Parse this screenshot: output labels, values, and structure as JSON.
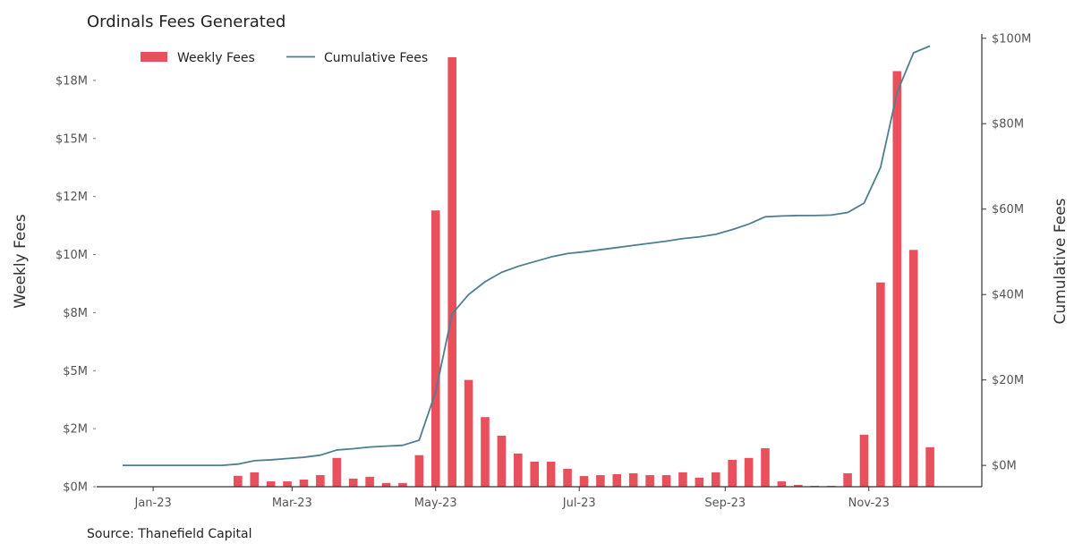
{
  "chart_data": {
    "type": "bar+line",
    "title": "Ordinals Fees Generated",
    "source": "Source: Thanefield Capital",
    "ylabel_left": "Weekly Fees",
    "ylabel_right": "Cumulative Fees",
    "colors": {
      "bar": "#e8505b",
      "line": "#4e7f8c"
    },
    "legend": {
      "placement": "top-left",
      "entries": [
        "Weekly Fees",
        "Cumulative Fees"
      ]
    },
    "grid": false,
    "left_axis": {
      "ylim": [
        0,
        19.5
      ],
      "ticks": [
        {
          "value": 0,
          "label": "$0M"
        },
        {
          "value": 2.5,
          "label": "$2M"
        },
        {
          "value": 5,
          "label": "$5M"
        },
        {
          "value": 7.5,
          "label": "$8M"
        },
        {
          "value": 10,
          "label": "$10M"
        },
        {
          "value": 12.5,
          "label": "$12M"
        },
        {
          "value": 15,
          "label": "$15M"
        },
        {
          "value": 17.5,
          "label": "$18M"
        }
      ]
    },
    "right_axis": {
      "ylim": [
        -5,
        101
      ],
      "ticks": [
        {
          "value": 0,
          "label": "$0M"
        },
        {
          "value": 20,
          "label": "$20M"
        },
        {
          "value": 40,
          "label": "$40M"
        },
        {
          "value": 60,
          "label": "$60M"
        },
        {
          "value": 80,
          "label": "$80M"
        },
        {
          "value": 100,
          "label": "$100M"
        }
      ]
    },
    "x_axis": {
      "xlim": [
        "2022-12-08",
        "2023-12-19"
      ],
      "ticks": [
        {
          "date": "2023-01-01",
          "label": "Jan-23"
        },
        {
          "date": "2023-03-01",
          "label": "Mar-23"
        },
        {
          "date": "2023-05-01",
          "label": "May-23"
        },
        {
          "date": "2023-07-01",
          "label": "Jul-23"
        },
        {
          "date": "2023-09-01",
          "label": "Sep-23"
        },
        {
          "date": "2023-11-01",
          "label": "Nov-23"
        }
      ]
    },
    "series": [
      {
        "name": "Weekly Fees",
        "kind": "bar",
        "axis": "left",
        "unit": "$M",
        "points": [
          {
            "date": "2022-12-19",
            "value": 0
          },
          {
            "date": "2022-12-26",
            "value": 0
          },
          {
            "date": "2023-01-02",
            "value": 0
          },
          {
            "date": "2023-01-09",
            "value": 0
          },
          {
            "date": "2023-01-16",
            "value": 0
          },
          {
            "date": "2023-01-23",
            "value": 0
          },
          {
            "date": "2023-01-30",
            "value": 0
          },
          {
            "date": "2023-02-06",
            "value": 0.47
          },
          {
            "date": "2023-02-13",
            "value": 0.62
          },
          {
            "date": "2023-02-20",
            "value": 0.23
          },
          {
            "date": "2023-02-27",
            "value": 0.23
          },
          {
            "date": "2023-03-06",
            "value": 0.31
          },
          {
            "date": "2023-03-13",
            "value": 0.5
          },
          {
            "date": "2023-03-20",
            "value": 1.24
          },
          {
            "date": "2023-03-27",
            "value": 0.35
          },
          {
            "date": "2023-04-03",
            "value": 0.43
          },
          {
            "date": "2023-04-10",
            "value": 0.16
          },
          {
            "date": "2023-04-17",
            "value": 0.16
          },
          {
            "date": "2023-04-24",
            "value": 1.36
          },
          {
            "date": "2023-05-01",
            "value": 11.9
          },
          {
            "date": "2023-05-08",
            "value": 18.5
          },
          {
            "date": "2023-05-15",
            "value": 4.6
          },
          {
            "date": "2023-05-22",
            "value": 3.0
          },
          {
            "date": "2023-05-29",
            "value": 2.2
          },
          {
            "date": "2023-06-05",
            "value": 1.43
          },
          {
            "date": "2023-06-12",
            "value": 1.08
          },
          {
            "date": "2023-06-19",
            "value": 1.08
          },
          {
            "date": "2023-06-26",
            "value": 0.77
          },
          {
            "date": "2023-07-03",
            "value": 0.46
          },
          {
            "date": "2023-07-10",
            "value": 0.5
          },
          {
            "date": "2023-07-17",
            "value": 0.54
          },
          {
            "date": "2023-07-24",
            "value": 0.58
          },
          {
            "date": "2023-07-31",
            "value": 0.5
          },
          {
            "date": "2023-08-07",
            "value": 0.5
          },
          {
            "date": "2023-08-14",
            "value": 0.62
          },
          {
            "date": "2023-08-21",
            "value": 0.39
          },
          {
            "date": "2023-08-28",
            "value": 0.62
          },
          {
            "date": "2023-09-04",
            "value": 1.16
          },
          {
            "date": "2023-09-11",
            "value": 1.24
          },
          {
            "date": "2023-09-18",
            "value": 1.66
          },
          {
            "date": "2023-09-25",
            "value": 0.23
          },
          {
            "date": "2023-10-02",
            "value": 0.08
          },
          {
            "date": "2023-10-09",
            "value": 0.04
          },
          {
            "date": "2023-10-16",
            "value": 0.04
          },
          {
            "date": "2023-10-23",
            "value": 0.58
          },
          {
            "date": "2023-10-30",
            "value": 2.24
          },
          {
            "date": "2023-11-06",
            "value": 8.8
          },
          {
            "date": "2023-11-13",
            "value": 17.9
          },
          {
            "date": "2023-11-20",
            "value": 10.2
          },
          {
            "date": "2023-11-27",
            "value": 1.7
          }
        ]
      },
      {
        "name": "Cumulative Fees",
        "kind": "line",
        "axis": "right",
        "unit": "$M",
        "points": [
          {
            "date": "2022-12-19",
            "value": 0
          },
          {
            "date": "2023-01-30",
            "value": 0
          },
          {
            "date": "2023-02-06",
            "value": 0.3
          },
          {
            "date": "2023-02-13",
            "value": 1.1
          },
          {
            "date": "2023-02-20",
            "value": 1.3
          },
          {
            "date": "2023-02-27",
            "value": 1.6
          },
          {
            "date": "2023-03-06",
            "value": 1.9
          },
          {
            "date": "2023-03-13",
            "value": 2.4
          },
          {
            "date": "2023-03-20",
            "value": 3.6
          },
          {
            "date": "2023-03-27",
            "value": 3.9
          },
          {
            "date": "2023-04-03",
            "value": 4.3
          },
          {
            "date": "2023-04-10",
            "value": 4.5
          },
          {
            "date": "2023-04-17",
            "value": 4.7
          },
          {
            "date": "2023-04-24",
            "value": 5.9
          },
          {
            "date": "2023-05-01",
            "value": 17.2
          },
          {
            "date": "2023-05-08",
            "value": 35.5
          },
          {
            "date": "2023-05-15",
            "value": 40.0
          },
          {
            "date": "2023-05-22",
            "value": 43.0
          },
          {
            "date": "2023-05-29",
            "value": 45.2
          },
          {
            "date": "2023-06-05",
            "value": 46.6
          },
          {
            "date": "2023-06-12",
            "value": 47.7
          },
          {
            "date": "2023-06-19",
            "value": 48.8
          },
          {
            "date": "2023-06-26",
            "value": 49.6
          },
          {
            "date": "2023-07-03",
            "value": 50.0
          },
          {
            "date": "2023-07-10",
            "value": 50.5
          },
          {
            "date": "2023-07-17",
            "value": 51.0
          },
          {
            "date": "2023-07-24",
            "value": 51.5
          },
          {
            "date": "2023-07-31",
            "value": 52.0
          },
          {
            "date": "2023-08-07",
            "value": 52.5
          },
          {
            "date": "2023-08-14",
            "value": 53.1
          },
          {
            "date": "2023-08-21",
            "value": 53.5
          },
          {
            "date": "2023-08-28",
            "value": 54.1
          },
          {
            "date": "2023-09-04",
            "value": 55.2
          },
          {
            "date": "2023-09-11",
            "value": 56.5
          },
          {
            "date": "2023-09-18",
            "value": 58.2
          },
          {
            "date": "2023-09-25",
            "value": 58.4
          },
          {
            "date": "2023-10-02",
            "value": 58.5
          },
          {
            "date": "2023-10-09",
            "value": 58.5
          },
          {
            "date": "2023-10-16",
            "value": 58.6
          },
          {
            "date": "2023-10-23",
            "value": 59.2
          },
          {
            "date": "2023-10-30",
            "value": 61.4
          },
          {
            "date": "2023-11-06",
            "value": 69.8
          },
          {
            "date": "2023-11-13",
            "value": 87.3
          },
          {
            "date": "2023-11-20",
            "value": 96.6
          },
          {
            "date": "2023-11-27",
            "value": 98.2
          }
        ]
      }
    ]
  }
}
